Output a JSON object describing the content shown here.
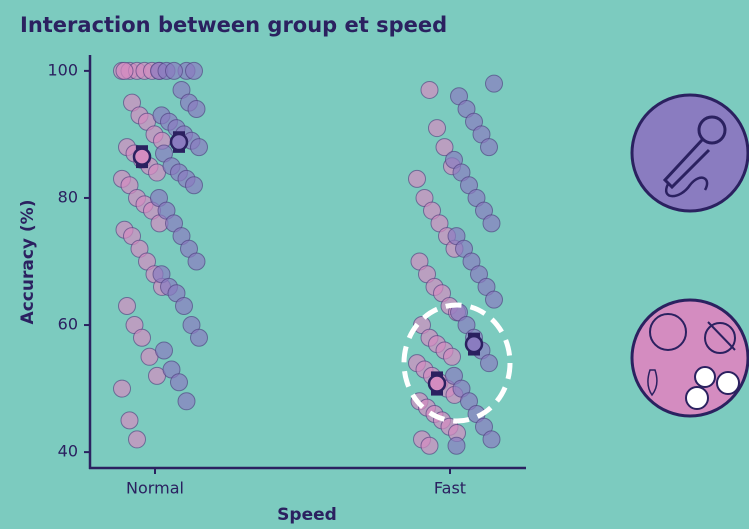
{
  "chart_data": {
    "type": "strip",
    "title": "Interaction between group et speed",
    "x_label": "Speed",
    "y_label": "Accuracy (%)",
    "categories": [
      "Normal",
      "Fast"
    ],
    "ylim": [
      37.5,
      102.5
    ],
    "yticks": [
      40,
      60,
      80,
      100
    ],
    "series": [
      {
        "color": "#d48cc0",
        "values": [
          [
            100,
            100,
            100,
            100,
            100,
            100,
            100,
            95,
            93,
            92,
            90,
            89,
            88,
            87,
            86,
            85,
            84,
            83,
            82,
            80,
            79,
            78,
            76,
            75,
            74,
            72,
            70,
            68,
            66,
            63,
            60,
            58,
            55,
            52,
            50,
            45,
            42
          ],
          [
            97,
            91,
            88,
            85,
            83,
            80,
            78,
            76,
            74,
            72,
            70,
            68,
            66,
            65,
            63,
            62,
            60,
            58,
            57,
            56,
            55,
            54,
            53,
            52,
            51,
            50,
            49,
            48,
            47,
            46,
            45,
            44,
            43,
            42,
            41
          ]
        ],
        "means": [
          86.5,
          50.8
        ],
        "errors": [
          1.8,
          1.9
        ]
      },
      {
        "color": "#8a7cc0",
        "values": [
          [
            100,
            100,
            100,
            100,
            100,
            97,
            95,
            94,
            93,
            92,
            91,
            90,
            89,
            88,
            87,
            85,
            84,
            83,
            82,
            80,
            78,
            76,
            74,
            72,
            70,
            68,
            66,
            65,
            63,
            60,
            58,
            56,
            53,
            51,
            48
          ],
          [
            98,
            96,
            94,
            92,
            90,
            88,
            86,
            84,
            82,
            80,
            78,
            76,
            74,
            72,
            70,
            68,
            66,
            64,
            62,
            60,
            58,
            56,
            54,
            52,
            50,
            48,
            46,
            44,
            42,
            41
          ]
        ],
        "means": [
          88.8,
          57.0
        ],
        "errors": [
          1.7,
          1.8
        ]
      }
    ]
  }
}
